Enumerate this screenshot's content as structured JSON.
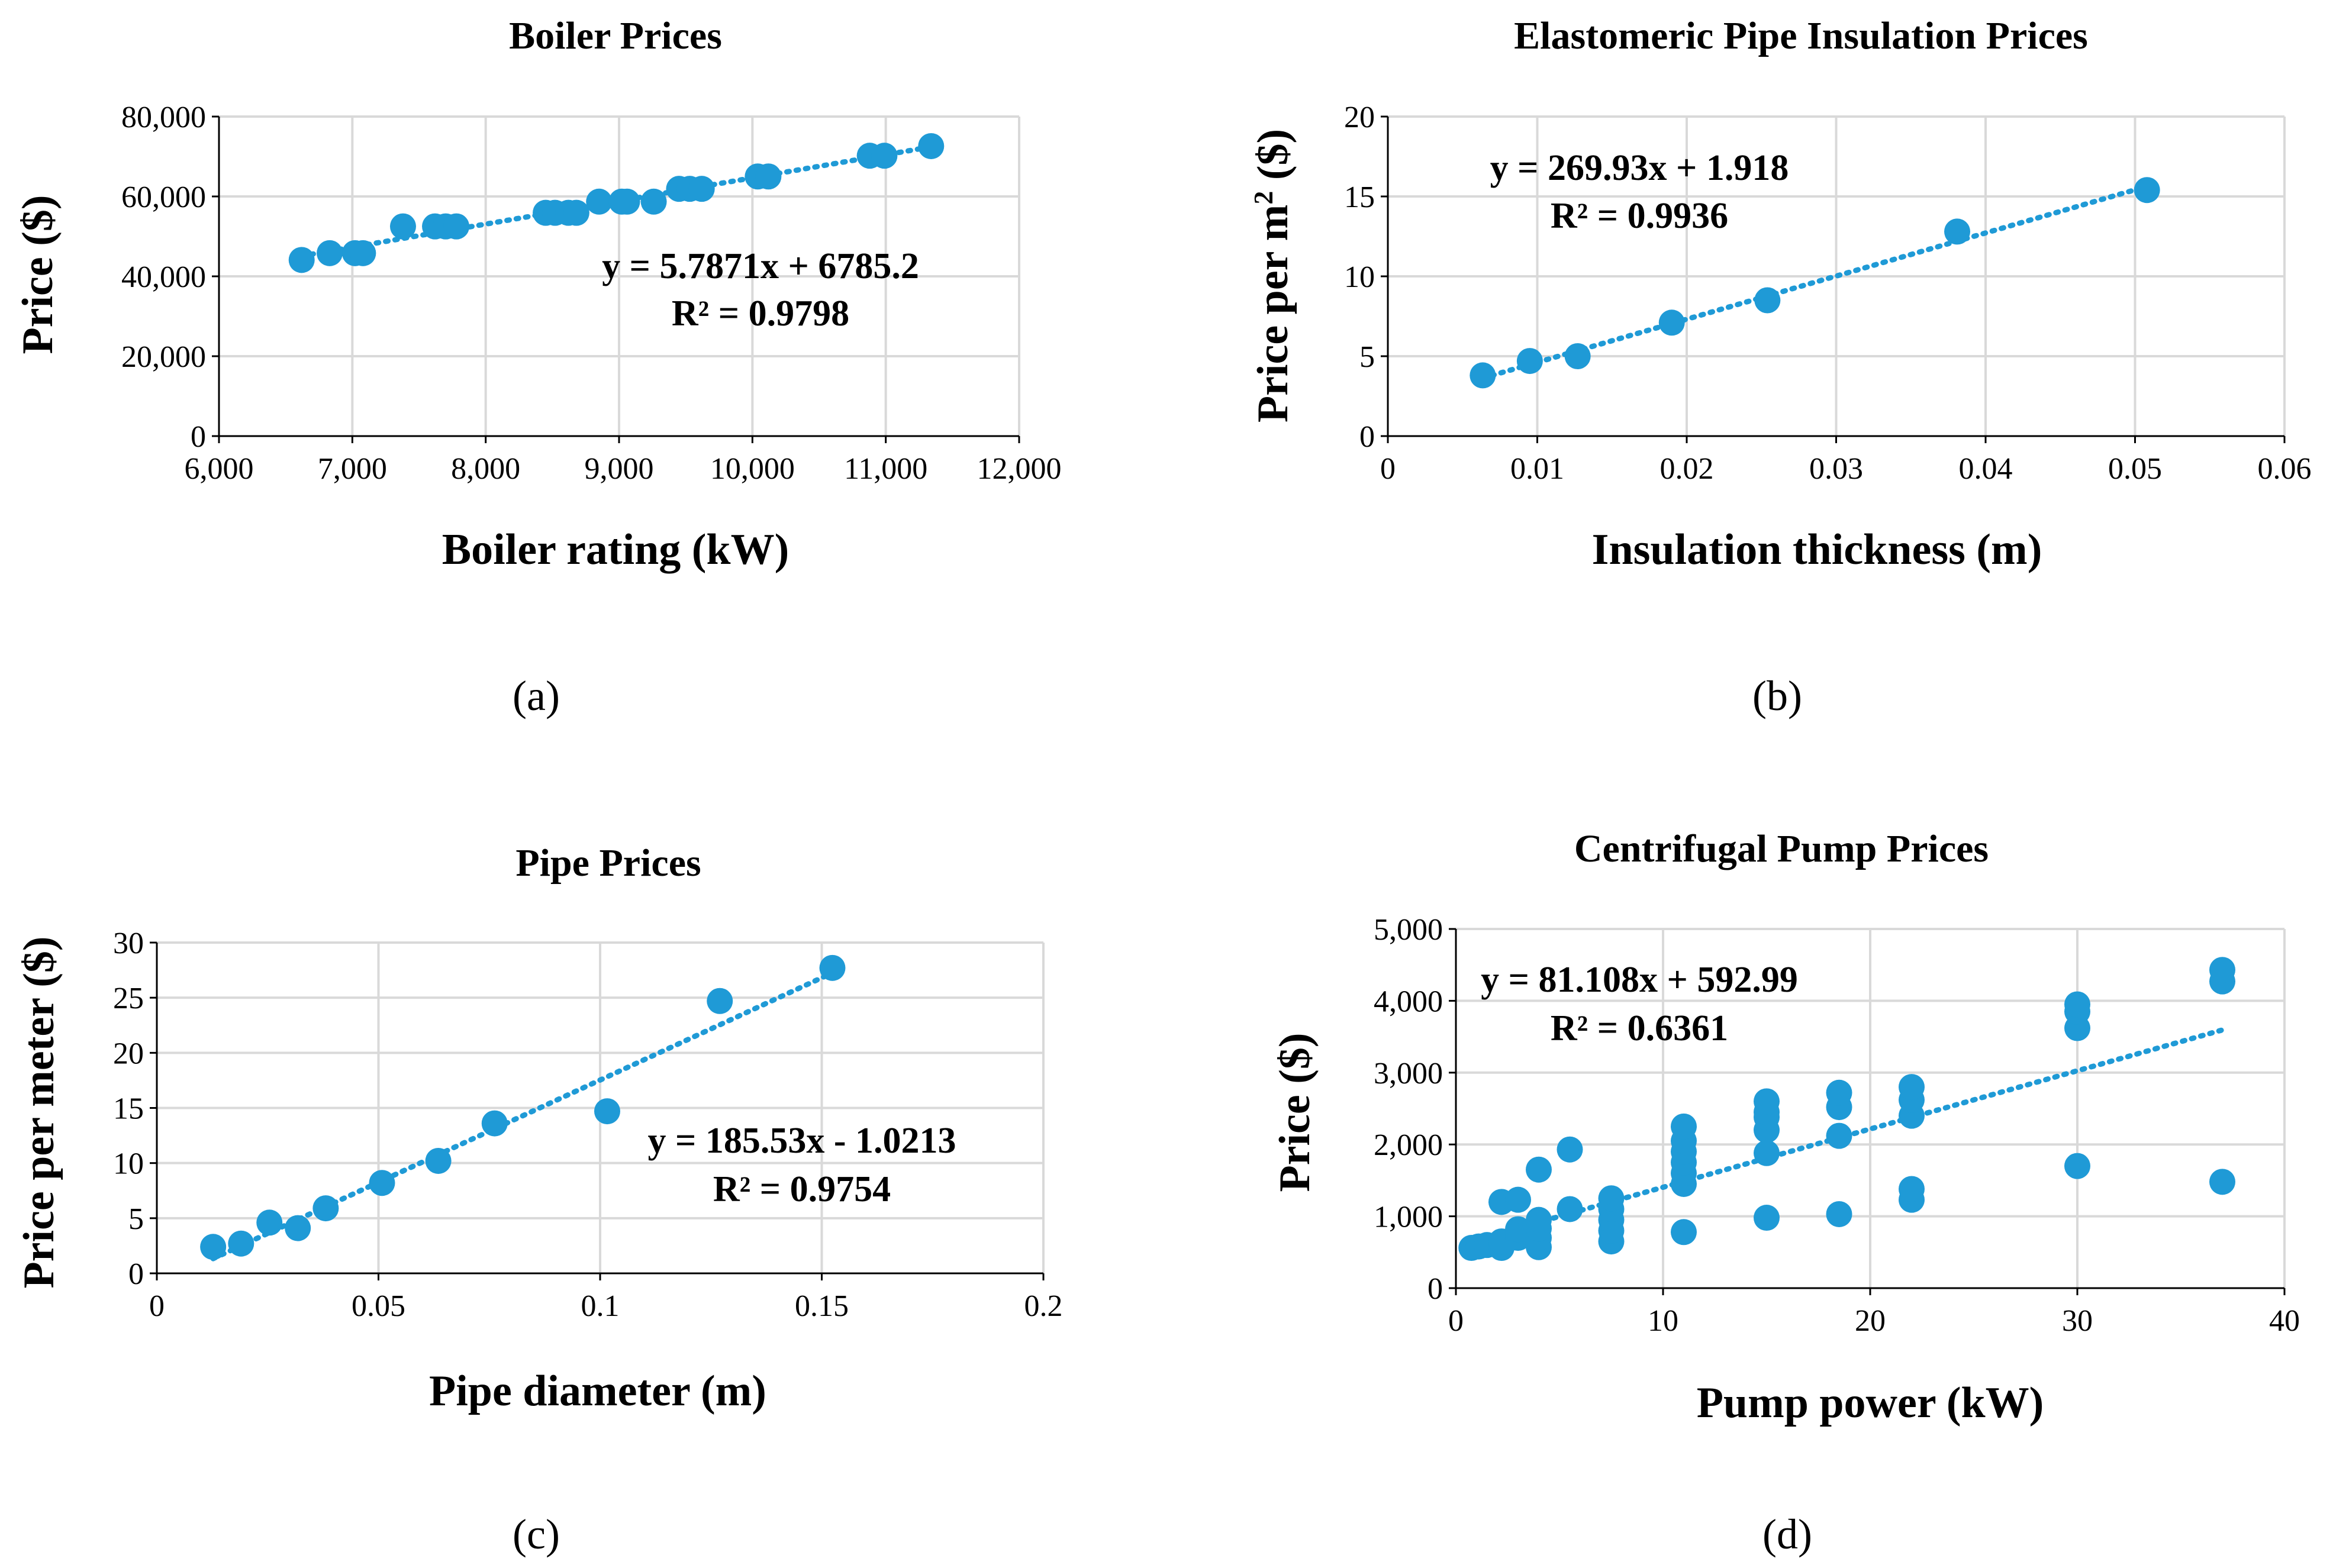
{
  "figure": {
    "marker_color": "#1f9ad6",
    "gridline_color": "#d9d9d9",
    "axis_color": "#000000"
  },
  "chart_data": [
    {
      "id": "a",
      "type": "scatter",
      "title": "Boiler Prices",
      "xlabel": "Boiler rating (kW)",
      "ylabel": "Price ($)",
      "caption": "(a)",
      "grid": true,
      "xlim": [
        6000,
        12000
      ],
      "ylim": [
        0,
        80000
      ],
      "xticks": [
        6000,
        7000,
        8000,
        9000,
        10000,
        11000,
        12000
      ],
      "xtick_labels": [
        "6,000",
        "7,000",
        "8,000",
        "9,000",
        "10,000",
        "11,000",
        "12,000"
      ],
      "yticks": [
        0,
        20000,
        40000,
        60000,
        80000
      ],
      "ytick_labels": [
        "0",
        "20,000",
        "40,000",
        "60,000",
        "80,000"
      ],
      "series": [
        {
          "name": "Boiler prices",
          "points": [
            [
              6620,
              44100
            ],
            [
              6830,
              45800
            ],
            [
              7020,
              45800
            ],
            [
              7080,
              45800
            ],
            [
              7380,
              52500
            ],
            [
              7620,
              52500
            ],
            [
              7700,
              52500
            ],
            [
              7780,
              52500
            ],
            [
              8450,
              55900
            ],
            [
              8520,
              55900
            ],
            [
              8620,
              55900
            ],
            [
              8680,
              55900
            ],
            [
              8850,
              58700
            ],
            [
              9020,
              58700
            ],
            [
              9060,
              58700
            ],
            [
              9260,
              58700
            ],
            [
              9450,
              61900
            ],
            [
              9530,
              61900
            ],
            [
              9620,
              61900
            ],
            [
              10040,
              65000
            ],
            [
              10120,
              65000
            ],
            [
              10880,
              70200
            ],
            [
              10990,
              70200
            ],
            [
              11340,
              72600
            ]
          ]
        }
      ],
      "trendline": {
        "slope": 5.7871,
        "intercept": 6785.2,
        "x_range": [
          6620,
          11340
        ],
        "equation": "y = 5.7871x + 6785.2",
        "r_squared": "R² = 0.9798",
        "label_position": "middle-right"
      }
    },
    {
      "id": "b",
      "type": "scatter",
      "title": "Elastomeric Pipe Insulation Prices",
      "xlabel": "Insulation thickness (m)",
      "ylabel_main": "Price per m",
      "ylabel_sup": "2",
      "ylabel_tail": " ($)",
      "caption": "(b)",
      "grid": true,
      "xlim": [
        0,
        0.06
      ],
      "ylim": [
        0,
        20
      ],
      "xticks": [
        0,
        0.01,
        0.02,
        0.03,
        0.04,
        0.05,
        0.06
      ],
      "xtick_labels": [
        "0",
        "0.01",
        "0.02",
        "0.03",
        "0.04",
        "0.05",
        "0.06"
      ],
      "yticks": [
        0,
        5,
        10,
        15,
        20
      ],
      "ytick_labels": [
        "0",
        "5",
        "10",
        "15",
        "20"
      ],
      "series": [
        {
          "name": "Insulation prices",
          "points": [
            [
              0.00635,
              3.8
            ],
            [
              0.0095,
              4.7
            ],
            [
              0.0127,
              5.0
            ],
            [
              0.019,
              7.1
            ],
            [
              0.0254,
              8.5
            ],
            [
              0.0381,
              12.8
            ],
            [
              0.0508,
              15.4
            ]
          ]
        }
      ],
      "trendline": {
        "slope": 269.93,
        "intercept": 1.918,
        "x_range": [
          0.00635,
          0.0508
        ],
        "equation": "y = 269.93x + 1.918",
        "r_squared": "R² = 0.9936",
        "label_position": "top-left"
      }
    },
    {
      "id": "c",
      "type": "scatter",
      "title": "Pipe Prices",
      "xlabel": "Pipe diameter (m)",
      "ylabel": "Price per meter ($)",
      "caption": "(c)",
      "grid": true,
      "xlim": [
        0,
        0.2
      ],
      "ylim": [
        0,
        30
      ],
      "xticks": [
        0,
        0.05,
        0.1,
        0.15,
        0.2
      ],
      "xtick_labels": [
        "0",
        "0.05",
        "0.1",
        "0.15",
        "0.2"
      ],
      "yticks": [
        0,
        5,
        10,
        15,
        20,
        25,
        30
      ],
      "ytick_labels": [
        "0",
        "5",
        "10",
        "15",
        "20",
        "25",
        "30"
      ],
      "series": [
        {
          "name": "Pipe prices",
          "points": [
            [
              0.0127,
              2.4
            ],
            [
              0.019,
              2.7
            ],
            [
              0.0254,
              4.6
            ],
            [
              0.0318,
              4.1
            ],
            [
              0.0381,
              5.9
            ],
            [
              0.0508,
              8.2
            ],
            [
              0.0635,
              10.2
            ],
            [
              0.0762,
              13.6
            ],
            [
              0.1016,
              14.7
            ],
            [
              0.127,
              24.7
            ],
            [
              0.1524,
              27.7
            ]
          ]
        }
      ],
      "trendline": {
        "slope": 185.53,
        "intercept": -1.0213,
        "x_range": [
          0.0127,
          0.1524
        ],
        "equation": "y = 185.53x - 1.0213",
        "r_squared": "R² = 0.9754",
        "label_position": "middle-right"
      }
    },
    {
      "id": "d",
      "type": "scatter",
      "title": "Centrifugal Pump Prices",
      "xlabel": "Pump power (kW)",
      "ylabel": "Price ($)",
      "caption": "(d)",
      "grid": true,
      "xlim": [
        0,
        40
      ],
      "ylim": [
        0,
        5000
      ],
      "xticks": [
        0,
        10,
        20,
        30,
        40
      ],
      "xtick_labels": [
        "0",
        "10",
        "20",
        "30",
        "40"
      ],
      "yticks": [
        0,
        1000,
        2000,
        3000,
        4000,
        5000
      ],
      "ytick_labels": [
        "0",
        "1,000",
        "2,000",
        "3,000",
        "4,000",
        "5,000"
      ],
      "series": [
        {
          "name": "Pump prices",
          "points": [
            [
              0.75,
              560
            ],
            [
              1.1,
              580
            ],
            [
              1.5,
              600
            ],
            [
              2.2,
              560
            ],
            [
              2.2,
              650
            ],
            [
              2.2,
              1200
            ],
            [
              3.0,
              700
            ],
            [
              3.0,
              820
            ],
            [
              3.0,
              1230
            ],
            [
              4.0,
              570
            ],
            [
              4.0,
              700
            ],
            [
              4.0,
              830
            ],
            [
              4.0,
              950
            ],
            [
              4.0,
              1650
            ],
            [
              5.5,
              1100
            ],
            [
              5.5,
              1930
            ],
            [
              7.5,
              650
            ],
            [
              7.5,
              800
            ],
            [
              7.5,
              950
            ],
            [
              7.5,
              1100
            ],
            [
              7.5,
              1250
            ],
            [
              11.0,
              780
            ],
            [
              11.0,
              1450
            ],
            [
              11.0,
              1600
            ],
            [
              11.0,
              1750
            ],
            [
              11.0,
              1900
            ],
            [
              11.0,
              2050
            ],
            [
              11.0,
              2250
            ],
            [
              15.0,
              980
            ],
            [
              15.0,
              1880
            ],
            [
              15.0,
              2200
            ],
            [
              15.0,
              2380
            ],
            [
              15.0,
              2450
            ],
            [
              15.0,
              2600
            ],
            [
              18.5,
              1030
            ],
            [
              18.5,
              2120
            ],
            [
              18.5,
              2520
            ],
            [
              18.5,
              2720
            ],
            [
              22.0,
              1230
            ],
            [
              22.0,
              1380
            ],
            [
              22.0,
              2400
            ],
            [
              22.0,
              2620
            ],
            [
              22.0,
              2800
            ],
            [
              30.0,
              1700
            ],
            [
              30.0,
              3620
            ],
            [
              30.0,
              3850
            ],
            [
              30.0,
              3950
            ],
            [
              37.0,
              1480
            ],
            [
              37.0,
              4270
            ],
            [
              37.0,
              4430
            ]
          ]
        }
      ],
      "trendline": {
        "slope": 81.108,
        "intercept": 592.99,
        "x_range": [
          0.75,
          37.0
        ],
        "equation": "y = 81.108x + 592.99",
        "r_squared": "R² = 0.6361",
        "label_position": "top-left"
      }
    }
  ]
}
